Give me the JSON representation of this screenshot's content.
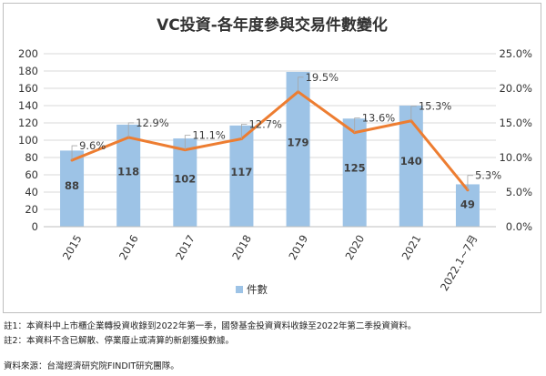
{
  "chart_data": {
    "type": "bar",
    "title": "VC投資-各年度參與交易件數變化",
    "categories": [
      "2015",
      "2016",
      "2017",
      "2018",
      "2019",
      "2020",
      "2021",
      "2022.1~7月"
    ],
    "series": [
      {
        "name": "件數",
        "type": "bar",
        "axis": "left",
        "color": "#9dc3e6",
        "values": [
          88,
          118,
          102,
          117,
          179,
          125,
          140,
          49
        ],
        "labels": [
          "88",
          "118",
          "102",
          "117",
          "179",
          "125",
          "140",
          "49"
        ]
      },
      {
        "name": "",
        "type": "line",
        "axis": "right",
        "color": "#ed7d31",
        "values": [
          9.6,
          12.9,
          11.1,
          12.7,
          19.5,
          13.6,
          15.3,
          5.3
        ],
        "labels": [
          "9.6%",
          "12.9%",
          "11.1%",
          "12.7%",
          "19.5%",
          "13.6%",
          "15.3%",
          "5.3%"
        ]
      }
    ],
    "ylim": [
      0,
      200
    ],
    "yticks": [
      "0",
      "20",
      "40",
      "60",
      "80",
      "100",
      "120",
      "140",
      "160",
      "180",
      "200"
    ],
    "y2lim": [
      0,
      25
    ],
    "y2ticks": [
      "0.0%",
      "5.0%",
      "10.0%",
      "15.0%",
      "20.0%",
      "25.0%"
    ],
    "grid": true,
    "legend": "bottom",
    "legend_entries": [
      "件數"
    ]
  },
  "notes": {
    "note1": "註1：本資料中上市櫃企業轉投資收錄到2022年第一季，國發基金投資資料收錄至2022年第二季投資資料。",
    "note2": "註2：本資料不含已解散、停業廢止或清算的新創獲投數據。",
    "source": "資料來源：台灣經濟研究院FINDIT研究團隊。"
  }
}
